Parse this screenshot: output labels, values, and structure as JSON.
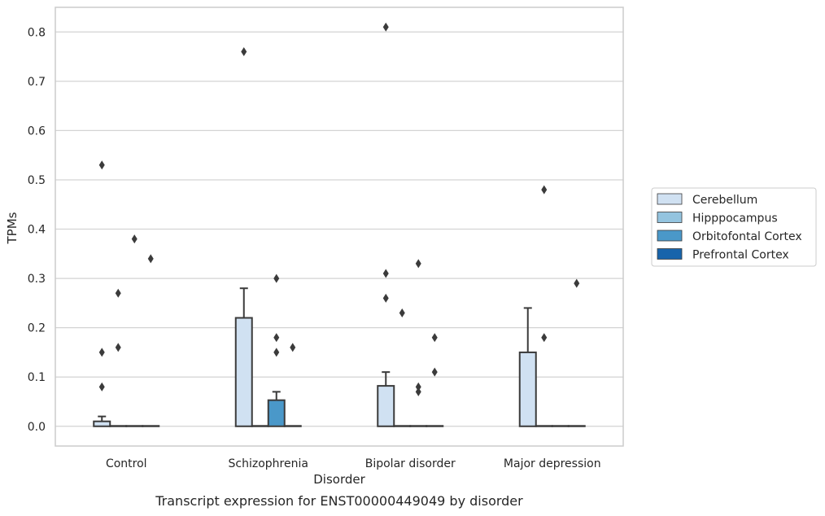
{
  "chart_data": {
    "type": "bar",
    "caption": "Transcript expression for ENST00000449049 by disorder",
    "xlabel": "Disorder",
    "ylabel": "TPMs",
    "ylim": [
      -0.04,
      0.85
    ],
    "yticks": [
      0.0,
      0.1,
      0.2,
      0.3,
      0.4,
      0.5,
      0.6,
      0.7,
      0.8
    ],
    "ytick_labels": [
      "0.0",
      "0.1",
      "0.2",
      "0.3",
      "0.4",
      "0.5",
      "0.6",
      "0.7",
      "0.8"
    ],
    "categories": [
      "Control",
      "Schizophrenia",
      "Bipolar disorder",
      "Major depression"
    ],
    "grid": true,
    "legend_position": "right",
    "series": [
      {
        "name": "Cerebellum",
        "color": "#d0e1f2",
        "values": [
          0.01,
          0.22,
          0.082,
          0.15
        ],
        "err_upper": [
          0.02,
          0.28,
          0.11,
          0.24
        ]
      },
      {
        "name": "Hipppocampus",
        "color": "#94c4df",
        "values": [
          0.0,
          0.0,
          0.0,
          0.0
        ],
        "err_upper": [
          null,
          null,
          null,
          null
        ]
      },
      {
        "name": "Orbitofontal Cortex",
        "color": "#4a98c9",
        "values": [
          0.0,
          0.053,
          0.0,
          0.0
        ],
        "err_upper": [
          null,
          0.07,
          null,
          null
        ]
      },
      {
        "name": "Prefrontal Cortex",
        "color": "#1764ab",
        "values": [
          0.0,
          0.0,
          0.0,
          0.0
        ],
        "err_upper": [
          null,
          null,
          null,
          null
        ]
      }
    ],
    "outliers": [
      {
        "category": 0,
        "series": 0,
        "y": [
          0.53,
          0.15,
          0.08
        ]
      },
      {
        "category": 0,
        "series": 1,
        "y": [
          0.27,
          0.16
        ]
      },
      {
        "category": 0,
        "series": 2,
        "y": [
          0.38
        ]
      },
      {
        "category": 0,
        "series": 3,
        "y": [
          0.34
        ]
      },
      {
        "category": 1,
        "series": 0,
        "y": [
          0.76
        ]
      },
      {
        "category": 1,
        "series": 2,
        "y": [
          0.3,
          0.18,
          0.15
        ]
      },
      {
        "category": 1,
        "series": 3,
        "y": [
          0.16
        ]
      },
      {
        "category": 2,
        "series": 0,
        "y": [
          0.81,
          0.31,
          0.26
        ]
      },
      {
        "category": 2,
        "series": 1,
        "y": [
          0.23
        ]
      },
      {
        "category": 2,
        "series": 2,
        "y": [
          0.33,
          0.08,
          0.07
        ]
      },
      {
        "category": 2,
        "series": 3,
        "y": [
          0.18,
          0.11
        ]
      },
      {
        "category": 3,
        "series": 1,
        "y": [
          0.48,
          0.18
        ]
      },
      {
        "category": 3,
        "series": 3,
        "y": [
          0.29
        ]
      }
    ]
  }
}
